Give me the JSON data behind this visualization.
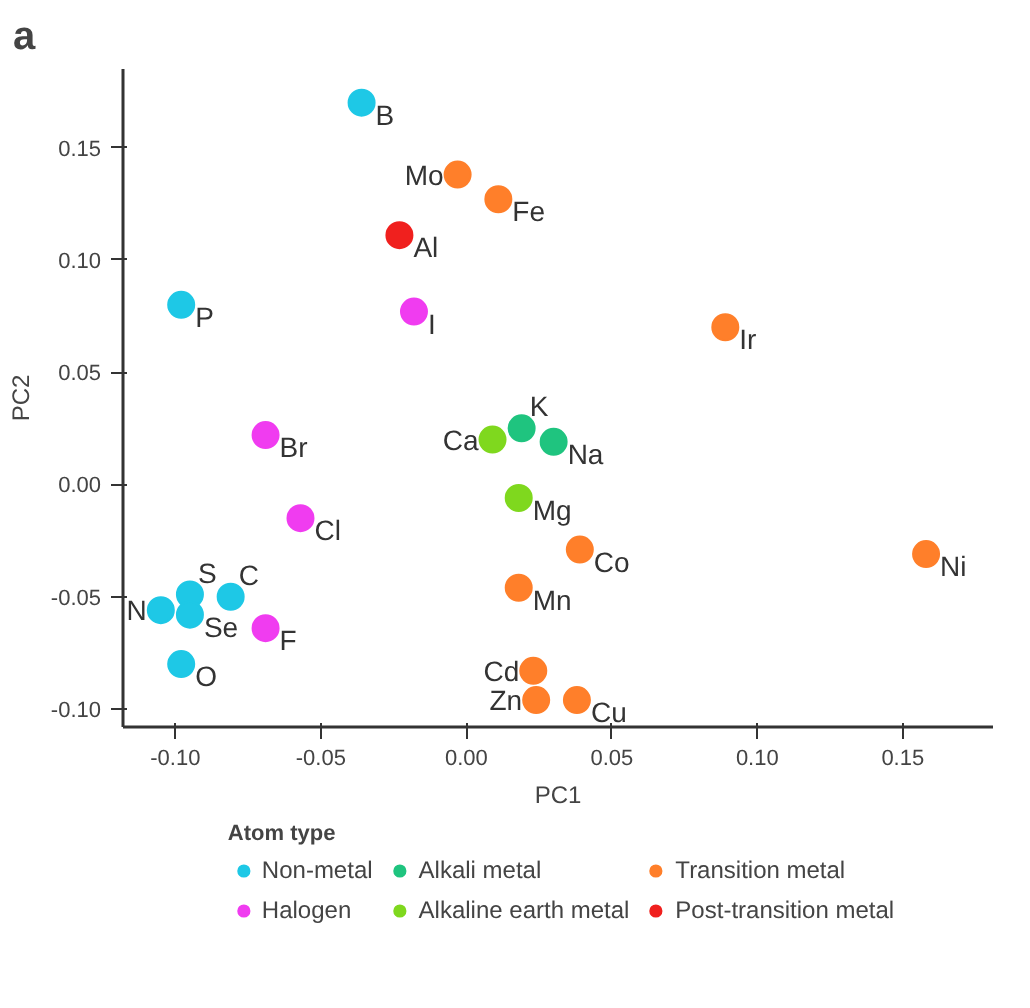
{
  "chart_data": {
    "type": "scatter",
    "title": "a",
    "xlabel": "PC1",
    "ylabel": "PC2",
    "legend_title": "Atom type",
    "legend": "bottom",
    "grid": false,
    "marker": "circle",
    "xlim": [
      -0.118,
      0.181
    ],
    "ylim": [
      -0.108,
      0.185
    ],
    "xticks": [
      {
        "value": -0.1,
        "label": "-0.10"
      },
      -0.05,
      {
        "value": 0,
        "label": "0.00"
      },
      0.05,
      {
        "value": 0.1,
        "label": "0.10"
      },
      0.15
    ],
    "yticks": [
      {
        "value": -0.1,
        "label": "-0.10"
      },
      -0.05,
      {
        "value": 0,
        "label": "0.00"
      },
      0.05,
      {
        "value": 0.1,
        "label": "0.10"
      },
      0.15
    ],
    "series": [
      {
        "name": "Non-metal",
        "color": "#1ec8e6",
        "x": [
          -0.036,
          -0.098,
          -0.105,
          -0.095,
          -0.081,
          -0.095,
          -0.098
        ],
        "values": [
          0.17,
          0.08,
          -0.056,
          -0.049,
          -0.05,
          -0.058,
          -0.08
        ]
      },
      {
        "name": "Alkali metal",
        "color": "#1fc47f",
        "x": [
          0.019,
          0.03
        ],
        "values": [
          0.025,
          0.019
        ]
      },
      {
        "name": "Transition metal",
        "color": "#ff7f2a",
        "x": [
          -0.003,
          0.011,
          0.089,
          0.039,
          0.158,
          0.018,
          0.023,
          0.024,
          0.038
        ],
        "values": [
          0.138,
          0.127,
          0.07,
          -0.029,
          -0.031,
          -0.046,
          -0.083,
          -0.096,
          -0.096
        ]
      },
      {
        "name": "Halogen",
        "color": "#f03cf0",
        "x": [
          -0.018,
          -0.069,
          -0.057,
          -0.069
        ],
        "values": [
          0.077,
          0.022,
          -0.015,
          -0.064
        ]
      },
      {
        "name": "Alkaline earth metal",
        "color": "#7fd81e",
        "x": [
          0.009,
          0.018
        ],
        "values": [
          0.02,
          -0.006
        ]
      },
      {
        "name": "Post-transition metal",
        "color": "#f0201e",
        "x": [
          -0.023
        ],
        "values": [
          0.111
        ]
      }
    ],
    "annotations": [
      {
        "text": "B",
        "x": -0.036,
        "y": 0.17
      },
      {
        "text": "P",
        "x": -0.098,
        "y": 0.08
      },
      {
        "text": "N",
        "x": -0.105,
        "y": -0.056
      },
      {
        "text": "S",
        "x": -0.095,
        "y": -0.049
      },
      {
        "text": "C",
        "x": -0.081,
        "y": -0.05
      },
      {
        "text": "Se",
        "x": -0.095,
        "y": -0.058
      },
      {
        "text": "O",
        "x": -0.098,
        "y": -0.08
      },
      {
        "text": "K",
        "x": 0.019,
        "y": 0.025
      },
      {
        "text": "Na",
        "x": 0.03,
        "y": 0.019
      },
      {
        "text": "Mo",
        "x": -0.003,
        "y": 0.138
      },
      {
        "text": "Fe",
        "x": 0.011,
        "y": 0.127
      },
      {
        "text": "Ir",
        "x": 0.089,
        "y": 0.07
      },
      {
        "text": "Co",
        "x": 0.039,
        "y": -0.029
      },
      {
        "text": "Ni",
        "x": 0.158,
        "y": -0.031
      },
      {
        "text": "Mn",
        "x": 0.018,
        "y": -0.046
      },
      {
        "text": "Cd",
        "x": 0.023,
        "y": -0.083
      },
      {
        "text": "Zn",
        "x": 0.024,
        "y": -0.096
      },
      {
        "text": "Cu",
        "x": 0.038,
        "y": -0.096
      },
      {
        "text": "I",
        "x": -0.018,
        "y": 0.077
      },
      {
        "text": "Br",
        "x": -0.069,
        "y": 0.022
      },
      {
        "text": "Cl",
        "x": -0.057,
        "y": -0.015
      },
      {
        "text": "F",
        "x": -0.069,
        "y": -0.064
      },
      {
        "text": "Ca",
        "x": 0.009,
        "y": 0.02
      },
      {
        "text": "Mg",
        "x": 0.018,
        "y": -0.006
      },
      {
        "text": "Al",
        "x": -0.023,
        "y": 0.111
      }
    ]
  }
}
